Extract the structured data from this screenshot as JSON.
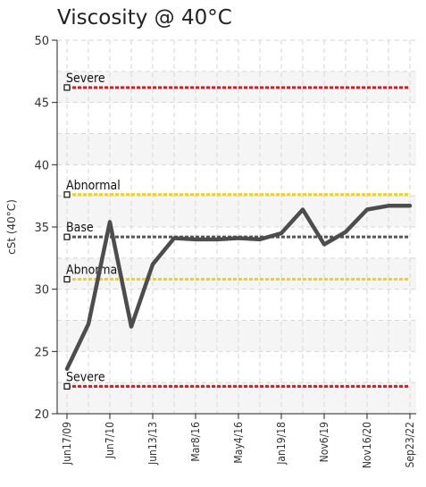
{
  "chart_data": {
    "type": "line",
    "title": "Viscosity @ 40°C",
    "ylabel": "cSt (40°C)",
    "xlabel": "",
    "ylim": [
      20,
      50
    ],
    "yticks": [
      20,
      25,
      30,
      35,
      40,
      45,
      50
    ],
    "x_tick_labels": [
      "Jun17/09",
      "Jun7/10",
      "Jun13/13",
      "Mar8/16",
      "May4/16",
      "Jan19/18",
      "Nov6/19",
      "Nov16/20",
      "Sep23/22"
    ],
    "grid": true,
    "series": [
      {
        "values": [
          23.6,
          27.2,
          35.4,
          27.0,
          32.0,
          34.1,
          34.0,
          34.0,
          34.1,
          34.0,
          34.5,
          36.4,
          33.6,
          34.6,
          36.4,
          36.7,
          36.7
        ],
        "color": "#4d4d4d"
      }
    ],
    "reference_lines": [
      {
        "label": "Severe",
        "value": 46.2,
        "color": "#e8141b"
      },
      {
        "label": "Abnormal",
        "value": 37.6,
        "color": "#f5cf12"
      },
      {
        "label": "Base",
        "value": 34.2,
        "color": "#555555"
      },
      {
        "label": "Abnormal",
        "value": 30.8,
        "color": "#f5cf12"
      },
      {
        "label": "Severe",
        "value": 22.2,
        "color": "#e8141b"
      }
    ]
  }
}
